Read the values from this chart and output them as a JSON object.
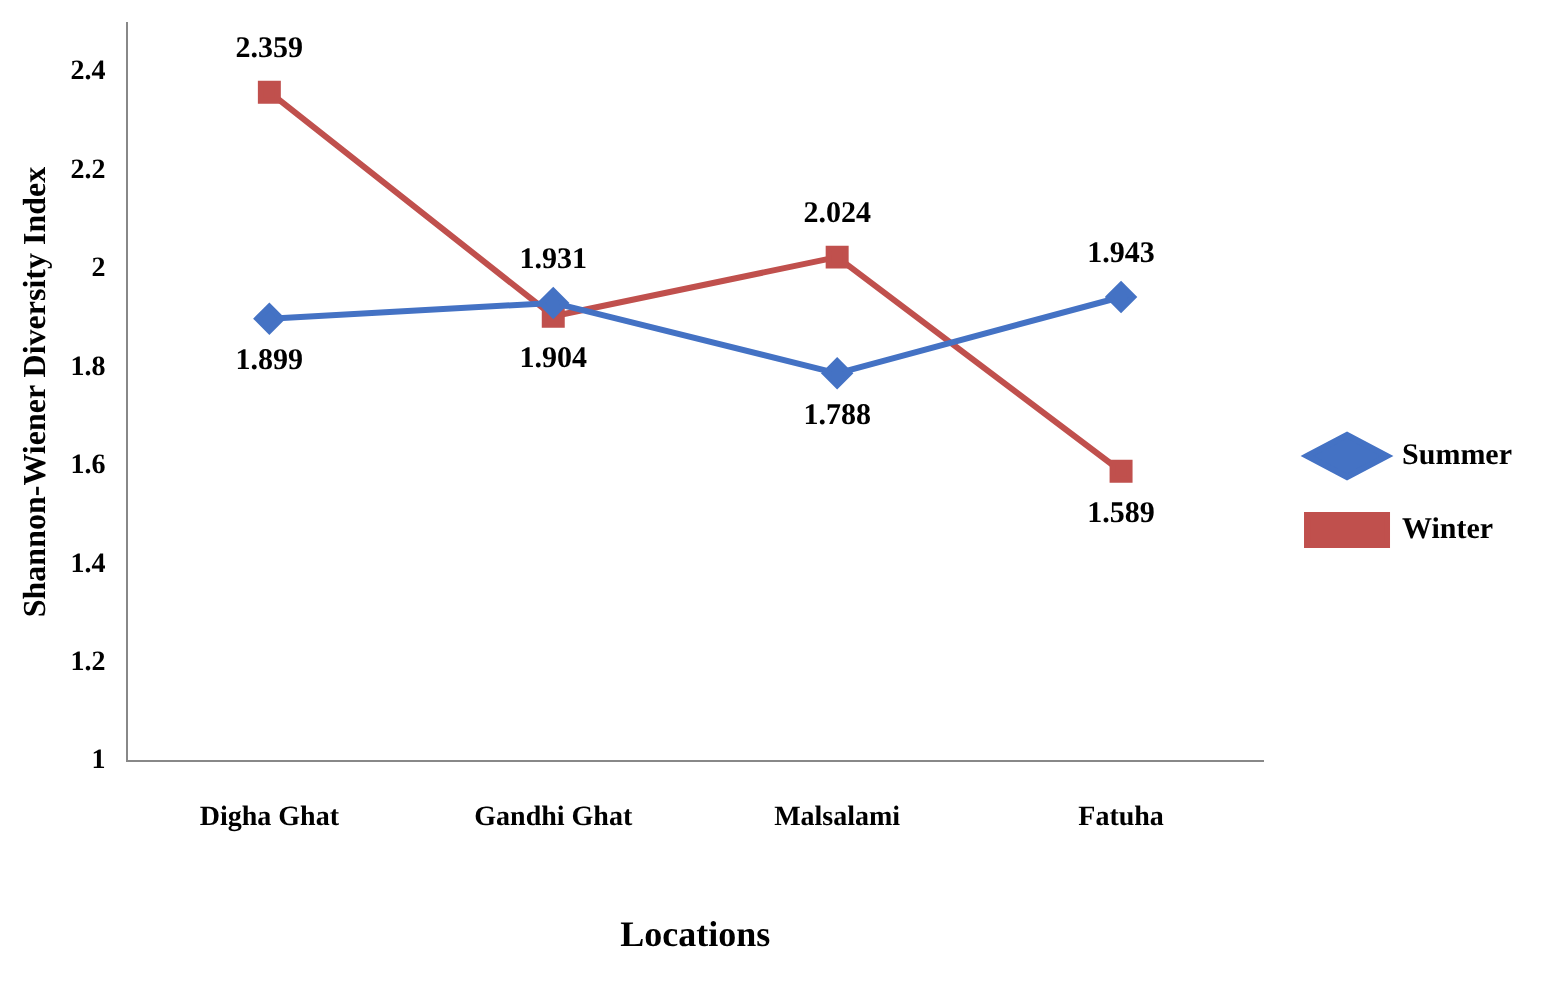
{
  "chart_data": {
    "type": "line",
    "xlabel": "Locations",
    "ylabel": "Shannon-Wiener Diversity Index",
    "categories": [
      "Digha Ghat",
      "Gandhi Ghat",
      "Malsalami",
      "Fatuha"
    ],
    "series": [
      {
        "name": "Summer",
        "color": "#4472c4",
        "marker": "diamond",
        "values": [
          1.899,
          1.931,
          1.788,
          1.943
        ]
      },
      {
        "name": "Winter",
        "color": "#c0504d",
        "marker": "square",
        "values": [
          2.359,
          1.904,
          2.024,
          1.589
        ]
      }
    ],
    "ylim": [
      1,
      2.5
    ],
    "yticks": [
      1,
      1.2,
      1.4,
      1.6,
      1.8,
      2,
      2.2,
      2.4
    ],
    "grid": false,
    "legend": "right",
    "data_labels": true
  }
}
